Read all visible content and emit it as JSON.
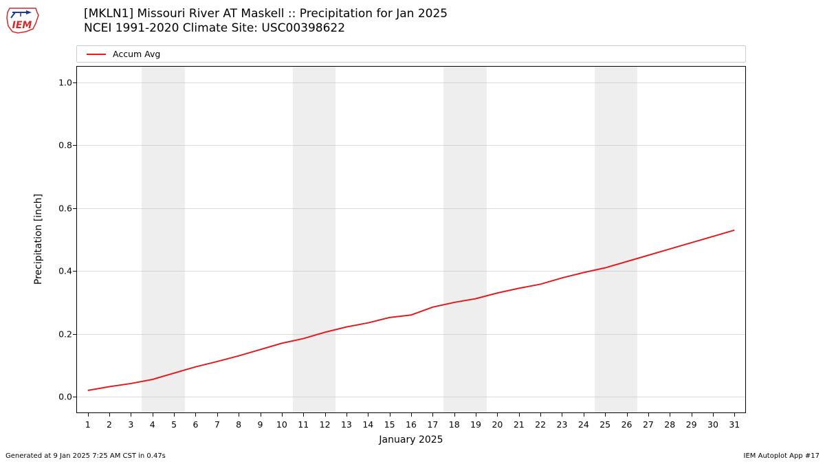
{
  "logo": {
    "text_top": "IEM",
    "outline_color": "#d62728",
    "arrow_color": "#1f3a93"
  },
  "title": {
    "line1": "[MKLN1] Missouri River  AT Maskell :: Precipitation for Jan 2025",
    "line2": "NCEI 1991-2020 Climate Site: USC00398622"
  },
  "legend": {
    "label": "Accum Avg",
    "color": "#e41a1c"
  },
  "chart": {
    "type": "line",
    "xlabel": "January 2025",
    "ylabel": "Precipitation [inch]",
    "xlim": [
      0.5,
      31.5
    ],
    "ylim": [
      -0.05,
      1.05
    ],
    "xticks": [
      1,
      2,
      3,
      4,
      5,
      6,
      7,
      8,
      9,
      10,
      11,
      12,
      13,
      14,
      15,
      16,
      17,
      18,
      19,
      20,
      21,
      22,
      23,
      24,
      25,
      26,
      27,
      28,
      29,
      30,
      31
    ],
    "yticks": [
      0.0,
      0.2,
      0.4,
      0.6,
      0.8,
      1.0
    ],
    "ytick_labels": [
      "0.0",
      "0.2",
      "0.4",
      "0.6",
      "0.8",
      "1.0"
    ],
    "grid_color": "#b0b0b0",
    "background": "#ffffff",
    "weekend_band_color": "#eeeeee",
    "weekend_bands": [
      [
        4,
        5
      ],
      [
        11,
        12
      ],
      [
        18,
        19
      ],
      [
        25,
        26
      ]
    ],
    "series": {
      "color": "#e41a1c",
      "line_width": 2,
      "x": [
        1,
        2,
        3,
        4,
        5,
        6,
        7,
        8,
        9,
        10,
        11,
        12,
        13,
        14,
        15,
        16,
        17,
        18,
        19,
        20,
        21,
        22,
        23,
        24,
        25,
        26,
        27,
        28,
        29,
        30,
        31
      ],
      "y": [
        0.02,
        0.032,
        0.042,
        0.055,
        0.075,
        0.095,
        0.112,
        0.13,
        0.15,
        0.17,
        0.185,
        0.205,
        0.222,
        0.235,
        0.252,
        0.26,
        0.285,
        0.3,
        0.312,
        0.33,
        0.345,
        0.358,
        0.378,
        0.395,
        0.41,
        0.43,
        0.45,
        0.47,
        0.49,
        0.51,
        0.53
      ]
    }
  },
  "footer": {
    "left": "Generated at 9 Jan 2025 7:25 AM CST in 0.47s",
    "right": "IEM Autoplot App #17"
  }
}
